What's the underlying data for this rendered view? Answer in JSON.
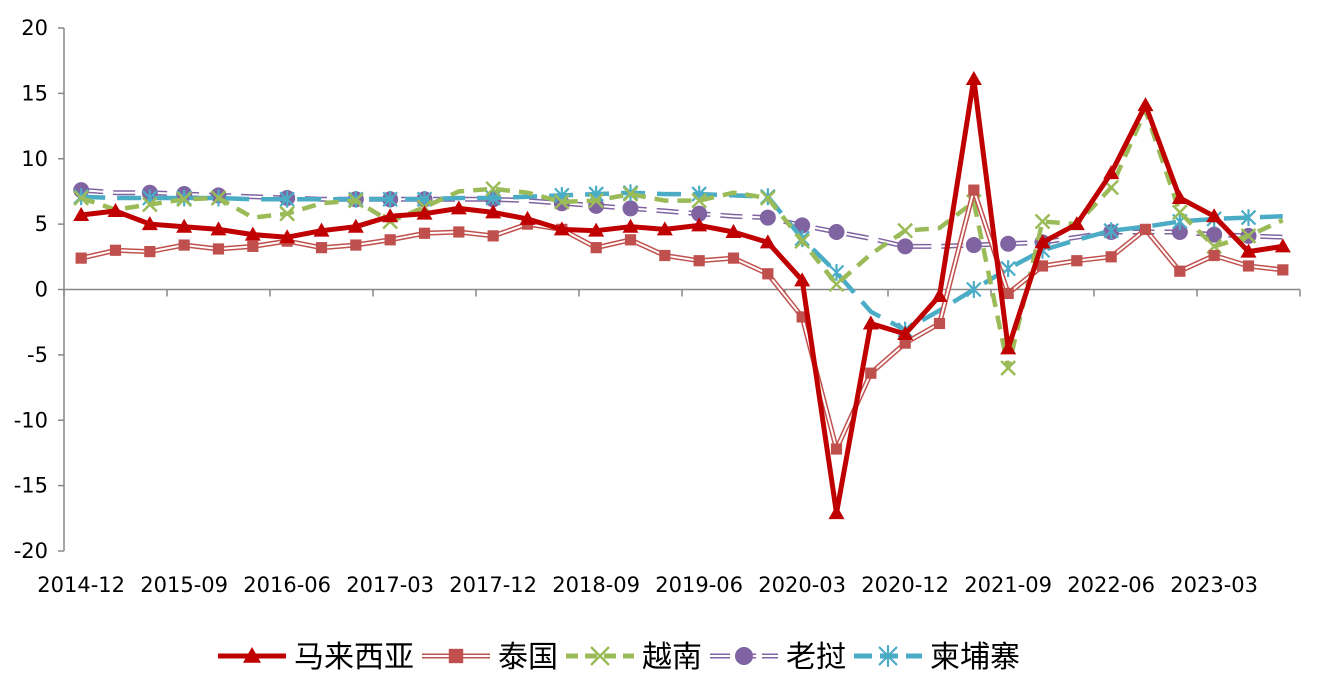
{
  "chart_data": {
    "type": "line",
    "title": "",
    "xlabel": "",
    "ylabel": "",
    "ylim": [
      -20,
      20
    ],
    "yticks": [
      20,
      15,
      10,
      5,
      0,
      -5,
      -10,
      -15,
      -20
    ],
    "xticks": [
      "2014-12",
      "2015-09",
      "2016-06",
      "2017-03",
      "2017-12",
      "2018-09",
      "2019-06",
      "2020-03",
      "2020-12",
      "2021-09",
      "2022-06",
      "2023-03"
    ],
    "categories": [
      "2014-12",
      "2015-03",
      "2015-06",
      "2015-09",
      "2015-12",
      "2016-03",
      "2016-06",
      "2016-09",
      "2016-12",
      "2017-03",
      "2017-06",
      "2017-09",
      "2017-12",
      "2018-03",
      "2018-06",
      "2018-09",
      "2018-12",
      "2019-03",
      "2019-06",
      "2019-09",
      "2019-12",
      "2020-03",
      "2020-06",
      "2020-09",
      "2020-12",
      "2021-03",
      "2021-06",
      "2021-09",
      "2021-12",
      "2022-03",
      "2022-06",
      "2022-09",
      "2022-12",
      "2023-03",
      "2023-06",
      "2023-09"
    ],
    "grid": false,
    "legend_position": "bottom",
    "series": [
      {
        "name": "马来西亚",
        "color": "#c00000",
        "marker": "triangle",
        "values": [
          5.7,
          6.0,
          5.0,
          4.8,
          4.6,
          4.2,
          4.0,
          4.5,
          4.8,
          5.6,
          5.8,
          6.2,
          5.9,
          5.4,
          4.6,
          4.5,
          4.8,
          4.6,
          4.9,
          4.4,
          3.6,
          0.7,
          -17.1,
          -2.6,
          -3.4,
          -0.5,
          16.1,
          -4.5,
          3.6,
          5.0,
          8.9,
          14.1,
          7.0,
          5.6,
          2.9,
          3.3
        ]
      },
      {
        "name": "泰国",
        "color": "#c0504d",
        "marker": "square",
        "values": [
          2.4,
          3.0,
          2.9,
          3.4,
          3.1,
          3.3,
          3.7,
          3.2,
          3.4,
          3.8,
          4.3,
          4.4,
          4.1,
          5.0,
          4.6,
          3.2,
          3.8,
          2.6,
          2.2,
          2.4,
          1.2,
          -2.1,
          -12.2,
          -6.4,
          -4.1,
          -2.6,
          7.6,
          -0.3,
          1.8,
          2.2,
          2.5,
          4.6,
          1.4,
          2.6,
          1.8,
          1.5
        ]
      },
      {
        "name": "越南",
        "color": "#9bbb59",
        "marker": "x",
        "values": [
          7.0,
          6.1,
          6.5,
          6.9,
          7.0,
          5.5,
          5.8,
          6.6,
          6.8,
          5.2,
          6.3,
          7.5,
          7.7,
          7.4,
          6.7,
          6.8,
          7.3,
          6.8,
          6.8,
          7.4,
          7.0,
          3.7,
          0.4,
          2.7,
          4.5,
          4.7,
          6.7,
          -6.0,
          5.2,
          5.0,
          7.8,
          13.7,
          5.9,
          3.3,
          4.1,
          5.3
        ]
      },
      {
        "name": "老挝",
        "color": "#8064a2",
        "marker": "circle",
        "values": [
          7.6,
          7.4,
          7.4,
          7.3,
          7.2,
          7.1,
          7.0,
          6.9,
          6.9,
          6.9,
          6.9,
          6.9,
          6.9,
          6.8,
          6.6,
          6.4,
          6.2,
          6.0,
          5.8,
          5.6,
          5.5,
          4.9,
          4.4,
          3.9,
          3.3,
          3.3,
          3.4,
          3.5,
          3.6,
          4.0,
          4.4,
          4.4,
          4.4,
          4.2,
          4.1,
          4.0
        ]
      },
      {
        "name": "柬埔寨",
        "color": "#4bacc6",
        "marker": "asterisk",
        "values": [
          7.1,
          7.0,
          7.0,
          7.0,
          7.0,
          6.9,
          6.9,
          6.9,
          6.9,
          6.9,
          6.9,
          7.0,
          7.0,
          7.1,
          7.2,
          7.3,
          7.4,
          7.3,
          7.3,
          7.2,
          7.1,
          3.9,
          1.3,
          -1.7,
          -3.1,
          -1.6,
          0.0,
          1.6,
          3.0,
          3.8,
          4.5,
          4.8,
          5.2,
          5.4,
          5.5,
          5.6
        ]
      }
    ]
  }
}
